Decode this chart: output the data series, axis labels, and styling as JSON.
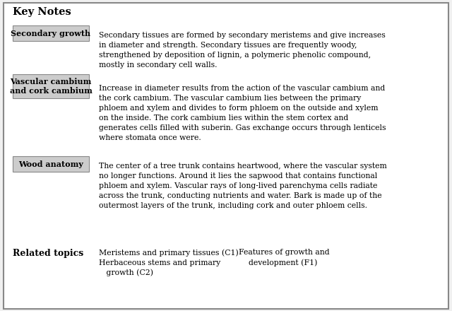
{
  "title": "Key Notes",
  "background_color": "#f0f0f0",
  "border_color": "#888888",
  "box_bg": "#cccccc",
  "box_border": "#888888",
  "entries": [
    {
      "label": "Secondary growth",
      "text": "Secondary tissues are formed by secondary meristems and give increases\nin diameter and strength. Secondary tissues are frequently woody,\nstrengthened by deposition of lignin, a polymeric phenolic compound,\nmostly in secondary cell walls."
    },
    {
      "label": "Vascular cambium\nand cork cambium",
      "text": "Increase in diameter results from the action of the vascular cambium and\nthe cork cambium. The vascular cambium lies between the primary\nphloem and xylem and divides to form phloem on the outside and xylem\non the inside. The cork cambium lies within the stem cortex and\ngenerates cells filled with suberin. Gas exchange occurs through lenticels\nwhere stomata once were."
    },
    {
      "label": "Wood anatomy",
      "text": "The center of a tree trunk contains heartwood, where the vascular system\nno longer functions. Around it lies the sapwood that contains functional\nphloem and xylem. Vascular rays of long-lived parenchyma cells radiate\nacross the trunk, conducting nutrients and water. Bark is made up of the\noutermost layers of the trunk, including cork and outer phloem cells."
    }
  ],
  "related_label": "Related topics",
  "related_col1": "Meristems and primary tissues (C1)    Features of growth and\nHerbaceous stems and primary             development (F1)\n   growth (C2)"
}
